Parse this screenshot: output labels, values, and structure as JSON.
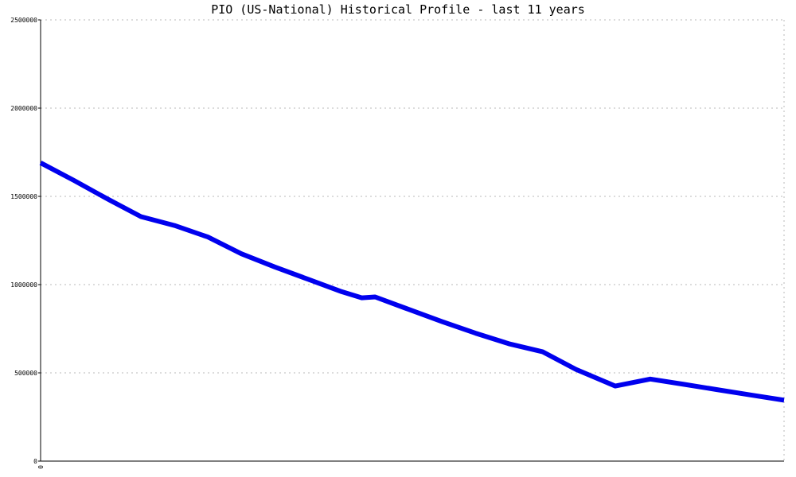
{
  "chart_data": {
    "type": "line",
    "title": "PIO (US-National) Historical Profile - last 11 years",
    "xlabel": "",
    "ylabel": "",
    "x_tick_labels": [
      "0"
    ],
    "y_ticks": [
      0,
      500000,
      1000000,
      1500000,
      2000000,
      2500000
    ],
    "y_tick_labels": [
      "0",
      "500000",
      "1000000",
      "1500000",
      "2000000",
      "2500000"
    ],
    "ylim": [
      0,
      2500000
    ],
    "xlim": [
      0,
      100
    ],
    "grid": true,
    "legend": "none",
    "colors": {
      "series": "#0000ee",
      "grid": "#b8b8b8",
      "axis": "#000000"
    },
    "series": [
      {
        "x": [
          0,
          4.5,
          9,
          13.5,
          18,
          22.5,
          27,
          31.5,
          36,
          40.5,
          43.2,
          45,
          49.5,
          54,
          58.5,
          63,
          67.5,
          72,
          77.3,
          82,
          86.5,
          91,
          95.5,
          100
        ],
        "values": [
          1690000,
          1590000,
          1485000,
          1385000,
          1335000,
          1270000,
          1175000,
          1100000,
          1030000,
          960000,
          925000,
          930000,
          860000,
          790000,
          725000,
          665000,
          620000,
          520000,
          425000,
          465000,
          435000,
          405000,
          375000,
          345000
        ]
      }
    ]
  }
}
